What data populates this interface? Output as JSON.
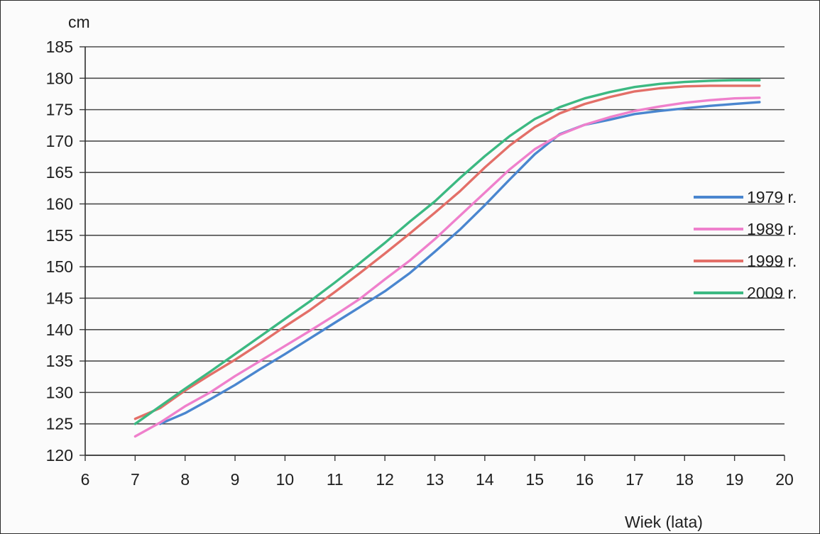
{
  "chart_data": {
    "type": "line",
    "ylabel": "cm",
    "xlabel": "Wiek (lata)",
    "xlim": [
      6,
      20
    ],
    "ylim": [
      120,
      185
    ],
    "xticks": [
      6,
      7,
      8,
      9,
      10,
      11,
      12,
      13,
      14,
      15,
      16,
      17,
      18,
      19,
      20
    ],
    "yticks": [
      120,
      125,
      130,
      135,
      140,
      145,
      150,
      155,
      160,
      165,
      170,
      175,
      180,
      185
    ],
    "grid": true,
    "legend_position": "right",
    "series": [
      {
        "name": "1979 r.",
        "color": "#4a86cf",
        "x": [
          7.5,
          8,
          8.5,
          9,
          9.5,
          10,
          10.5,
          11,
          11.5,
          12,
          12.5,
          13,
          13.5,
          14,
          14.5,
          15,
          15.5,
          16,
          16.5,
          17,
          17.5,
          18,
          18.5,
          19,
          19.5
        ],
        "y": [
          125,
          126.7,
          128.9,
          131.2,
          133.7,
          136.1,
          138.6,
          141.1,
          143.6,
          146.1,
          149,
          152.4,
          155.9,
          159.8,
          163.9,
          167.9,
          171.1,
          172.6,
          173.4,
          174.3,
          174.8,
          175.2,
          175.6,
          175.9,
          176.2
        ]
      },
      {
        "name": "1989 r.",
        "color": "#ef80cc",
        "x": [
          7,
          7.5,
          8,
          8.5,
          9,
          9.5,
          10,
          10.5,
          11,
          11.5,
          12,
          12.5,
          13,
          13.5,
          14,
          14.5,
          15,
          15.5,
          16,
          16.5,
          17,
          17.5,
          18,
          18.5,
          19,
          19.5
        ],
        "y": [
          123,
          125.2,
          127.8,
          130,
          132.6,
          135,
          137.4,
          139.8,
          142.3,
          144.9,
          148,
          151,
          154.4,
          158.1,
          161.8,
          165.5,
          168.7,
          171,
          172.6,
          173.8,
          174.8,
          175.5,
          176.1,
          176.5,
          176.8,
          176.9
        ]
      },
      {
        "name": "1999 r.",
        "color": "#e36f68",
        "x": [
          7,
          7.5,
          8,
          8.5,
          9,
          9.5,
          10,
          10.5,
          11,
          11.5,
          12,
          12.5,
          13,
          13.5,
          14,
          14.5,
          15,
          15.5,
          16,
          16.5,
          17,
          17.5,
          18,
          18.5,
          19,
          19.5
        ],
        "y": [
          125.8,
          127.5,
          130.3,
          132.8,
          135.2,
          137.8,
          140.5,
          143.1,
          146,
          149,
          152.1,
          155.3,
          158.6,
          162,
          165.8,
          169.3,
          172.2,
          174.4,
          175.9,
          177,
          177.9,
          178.4,
          178.7,
          178.8,
          178.8,
          178.8
        ]
      },
      {
        "name": "2009 r.",
        "color": "#3cb982",
        "x": [
          7,
          7.5,
          8,
          8.5,
          9,
          9.5,
          10,
          10.5,
          11,
          11.5,
          12,
          12.5,
          13,
          13.5,
          14,
          14.5,
          15,
          15.5,
          16,
          16.5,
          17,
          17.5,
          18,
          18.5,
          19,
          19.5
        ],
        "y": [
          125,
          127.8,
          130.6,
          133.3,
          136.1,
          138.9,
          141.7,
          144.5,
          147.5,
          150.6,
          153.8,
          157.2,
          160.4,
          164.1,
          167.6,
          170.8,
          173.5,
          175.4,
          176.8,
          177.8,
          178.6,
          179.1,
          179.4,
          179.6,
          179.7,
          179.7
        ]
      }
    ]
  }
}
